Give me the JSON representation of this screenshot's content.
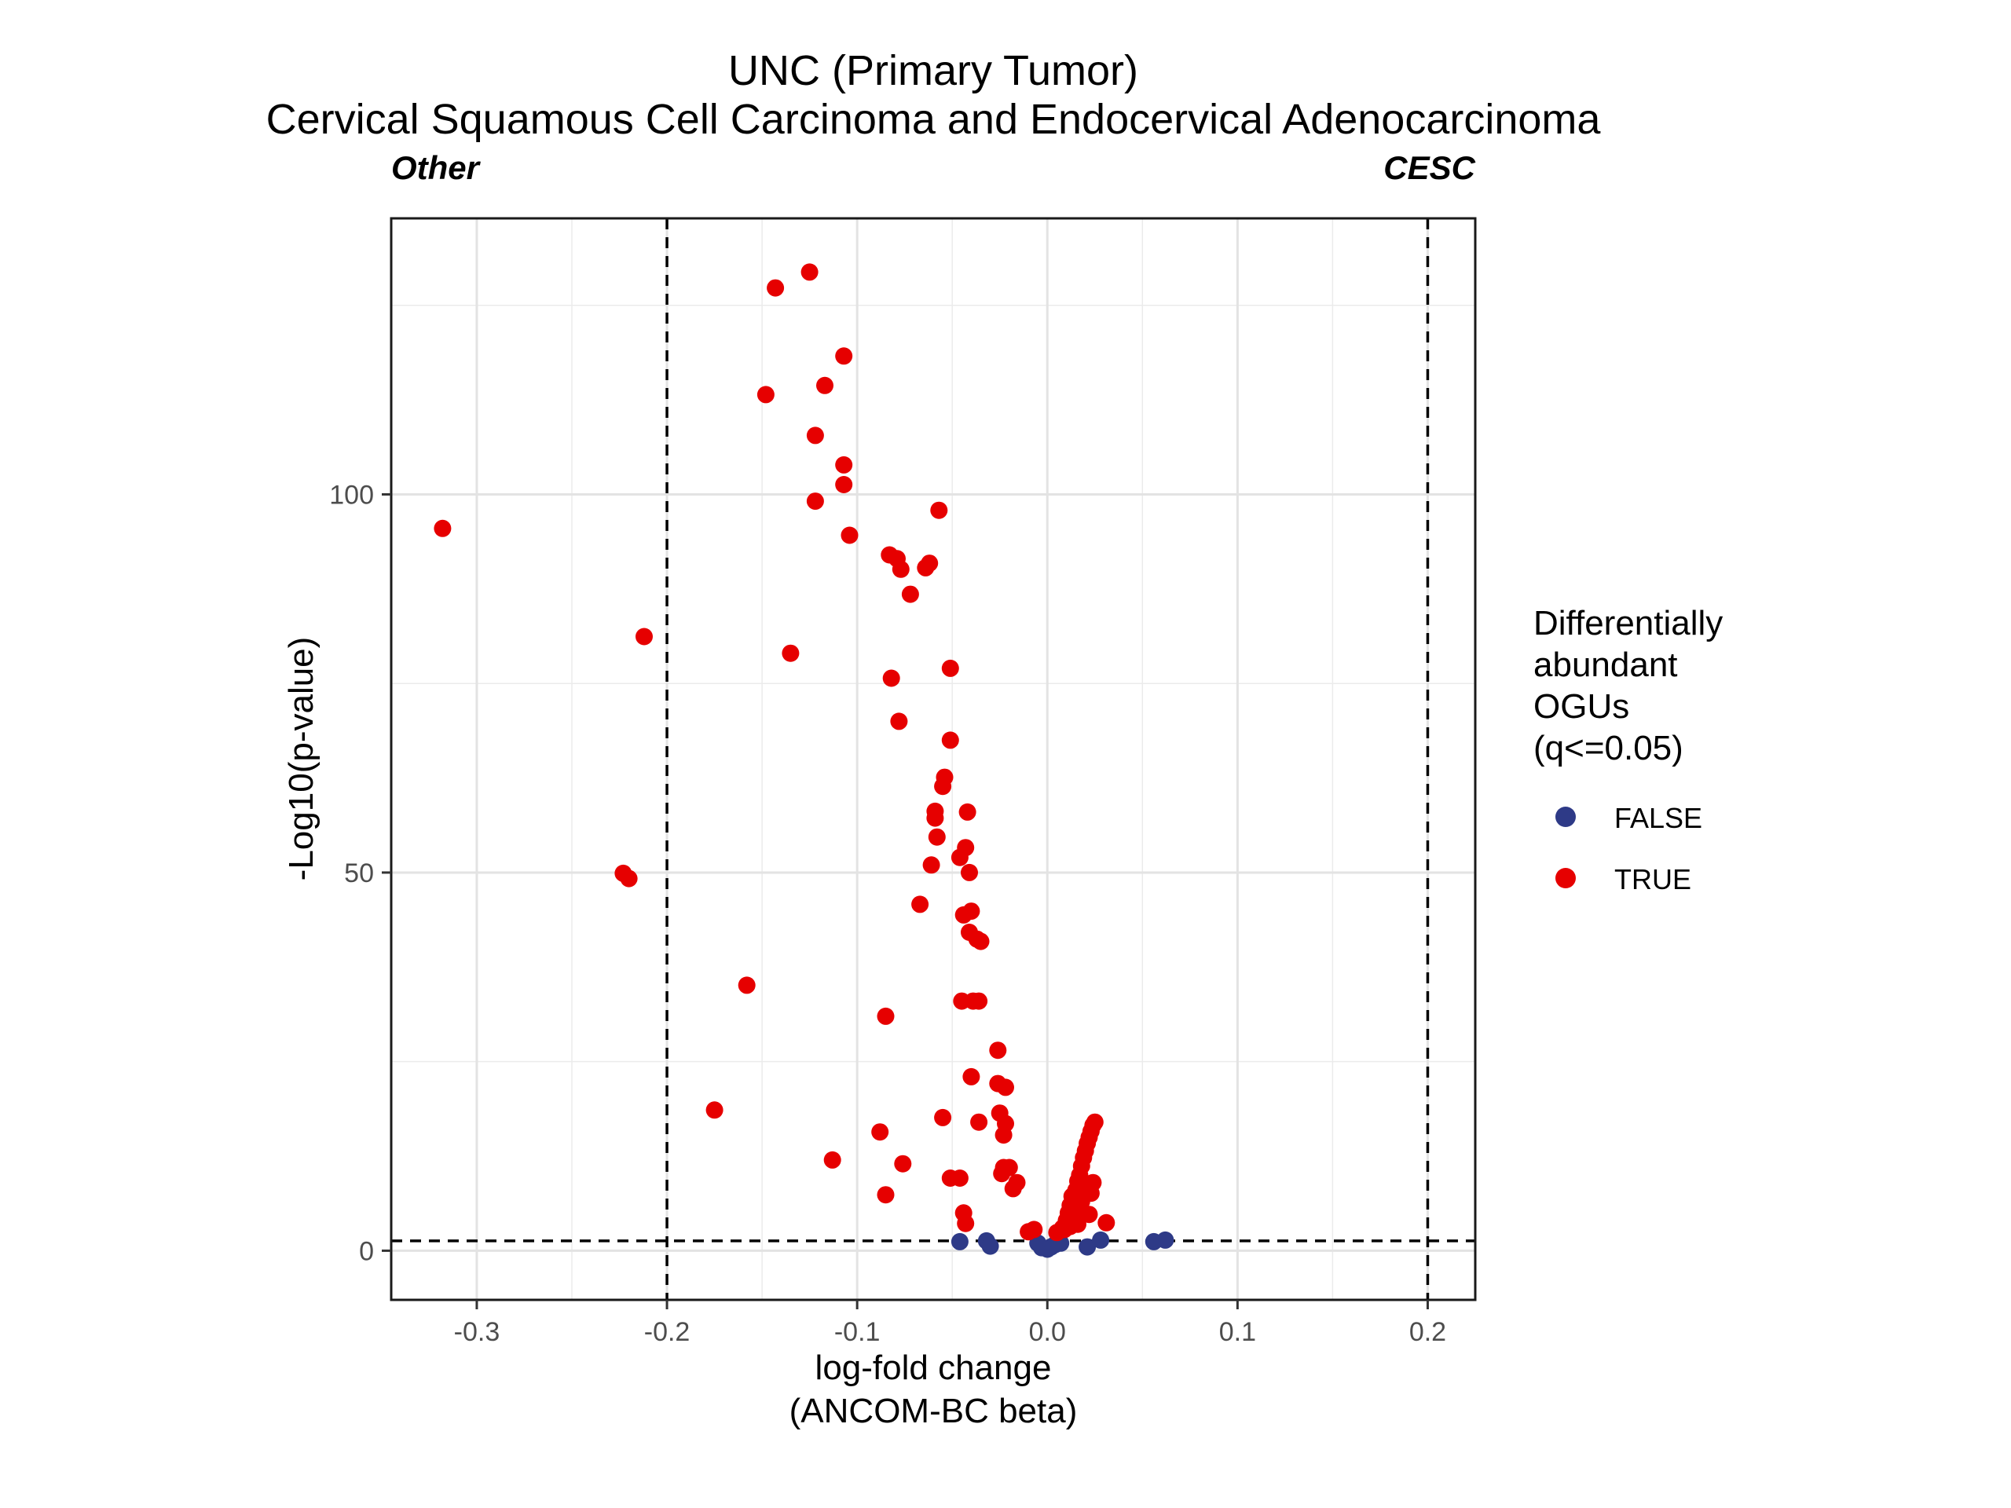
{
  "chart_data": {
    "type": "scatter",
    "title": "UNC (Primary Tumor)",
    "subtitle": "Cervical Squamous Cell Carcinoma and Endocervical Adenocarcinoma",
    "left_annotation": "Other",
    "right_annotation": "CESC",
    "xlabel_line1": "log-fold change",
    "xlabel_line2": "(ANCOM-BC beta)",
    "ylabel": "-Log10(p-value)",
    "xlim": [
      -0.345,
      0.225
    ],
    "ylim": [
      -6.5,
      136.5
    ],
    "x_ticks": [
      -0.3,
      -0.2,
      -0.1,
      0.0,
      0.1,
      0.2
    ],
    "x_tick_labels": [
      "-0.3",
      "-0.2",
      "-0.1",
      "0.0",
      "0.1",
      "0.2"
    ],
    "y_ticks": [
      0,
      50,
      100
    ],
    "y_tick_labels": [
      "0",
      "50",
      "100"
    ],
    "grid": true,
    "reference_lines": {
      "vertical": [
        -0.2,
        0.2
      ],
      "horizontal": [
        1.3
      ]
    },
    "legend": {
      "title_lines": [
        "Differentially",
        "abundant",
        "OGUs",
        "(q<=0.05)"
      ],
      "placement": "right",
      "items": [
        {
          "label": "FALSE",
          "color": "#2E3A87"
        },
        {
          "label": "TRUE",
          "color": "#E60000"
        }
      ]
    },
    "series": [
      {
        "name": "FALSE",
        "color": "#2E3A87",
        "points": [
          [
            -0.046,
            1.2
          ],
          [
            -0.032,
            1.3
          ],
          [
            -0.03,
            0.6
          ],
          [
            -0.005,
            1.0
          ],
          [
            -0.003,
            0.4
          ],
          [
            0.0,
            0.2
          ],
          [
            0.002,
            0.5
          ],
          [
            0.004,
            0.8
          ],
          [
            0.007,
            1.0
          ],
          [
            0.021,
            0.5
          ],
          [
            0.028,
            1.4
          ],
          [
            0.056,
            1.2
          ],
          [
            0.062,
            1.4
          ]
        ]
      },
      {
        "name": "TRUE",
        "color": "#E60000",
        "points": [
          [
            -0.318,
            95.5
          ],
          [
            -0.212,
            81.2
          ],
          [
            -0.223,
            49.9
          ],
          [
            -0.22,
            49.2
          ],
          [
            -0.158,
            35.1
          ],
          [
            -0.175,
            18.6
          ],
          [
            -0.143,
            127.3
          ],
          [
            -0.125,
            129.4
          ],
          [
            -0.107,
            118.3
          ],
          [
            -0.117,
            114.4
          ],
          [
            -0.148,
            113.2
          ],
          [
            -0.122,
            107.8
          ],
          [
            -0.107,
            103.9
          ],
          [
            -0.107,
            101.3
          ],
          [
            -0.122,
            99.1
          ],
          [
            -0.104,
            94.6
          ],
          [
            -0.057,
            97.9
          ],
          [
            -0.083,
            92.0
          ],
          [
            -0.079,
            91.5
          ],
          [
            -0.077,
            90.1
          ],
          [
            -0.064,
            90.3
          ],
          [
            -0.062,
            90.9
          ],
          [
            -0.072,
            86.8
          ],
          [
            -0.135,
            79.0
          ],
          [
            -0.082,
            75.7
          ],
          [
            -0.051,
            77.0
          ],
          [
            -0.078,
            70.0
          ],
          [
            -0.051,
            67.5
          ],
          [
            -0.054,
            62.6
          ],
          [
            -0.055,
            61.4
          ],
          [
            -0.059,
            58.1
          ],
          [
            -0.059,
            57.2
          ],
          [
            -0.042,
            58.0
          ],
          [
            -0.058,
            54.7
          ],
          [
            -0.043,
            53.3
          ],
          [
            -0.046,
            52.0
          ],
          [
            -0.061,
            51.0
          ],
          [
            -0.041,
            50.0
          ],
          [
            -0.067,
            45.8
          ],
          [
            -0.044,
            44.4
          ],
          [
            -0.04,
            44.9
          ],
          [
            -0.041,
            42.1
          ],
          [
            -0.037,
            41.2
          ],
          [
            -0.035,
            40.9
          ],
          [
            -0.045,
            33.0
          ],
          [
            -0.039,
            33.0
          ],
          [
            -0.036,
            33.0
          ],
          [
            -0.085,
            31.0
          ],
          [
            -0.026,
            26.5
          ],
          [
            -0.04,
            23.0
          ],
          [
            -0.026,
            22.1
          ],
          [
            -0.022,
            21.6
          ],
          [
            -0.025,
            18.2
          ],
          [
            -0.022,
            16.8
          ],
          [
            -0.055,
            17.6
          ],
          [
            -0.036,
            17.0
          ],
          [
            -0.023,
            15.3
          ],
          [
            -0.088,
            15.7
          ],
          [
            -0.113,
            12.0
          ],
          [
            -0.076,
            11.5
          ],
          [
            -0.023,
            11.0
          ],
          [
            -0.02,
            11.0
          ],
          [
            -0.024,
            10.2
          ],
          [
            -0.016,
            9.0
          ],
          [
            -0.018,
            8.2
          ],
          [
            -0.046,
            9.6
          ],
          [
            -0.051,
            9.6
          ],
          [
            -0.085,
            7.4
          ],
          [
            -0.044,
            5.0
          ],
          [
            -0.043,
            3.6
          ],
          [
            -0.007,
            2.8
          ],
          [
            -0.01,
            2.5
          ],
          [
            0.008,
            3.0
          ],
          [
            0.01,
            4.0
          ],
          [
            0.011,
            5.0
          ],
          [
            0.012,
            6.0
          ],
          [
            0.013,
            7.2
          ],
          [
            0.015,
            8.0
          ],
          [
            0.016,
            9.2
          ],
          [
            0.017,
            10.0
          ],
          [
            0.018,
            11.2
          ],
          [
            0.019,
            12.3
          ],
          [
            0.02,
            13.2
          ],
          [
            0.021,
            14.2
          ],
          [
            0.022,
            15.0
          ],
          [
            0.023,
            15.8
          ],
          [
            0.024,
            16.6
          ],
          [
            0.025,
            17.0
          ],
          [
            0.02,
            8.0
          ],
          [
            0.023,
            7.6
          ],
          [
            0.018,
            6.5
          ],
          [
            0.015,
            5.5
          ],
          [
            0.014,
            4.2
          ],
          [
            0.022,
            4.8
          ],
          [
            0.012,
            3.2
          ],
          [
            0.031,
            3.7
          ],
          [
            0.005,
            2.4
          ],
          [
            0.009,
            2.8
          ],
          [
            0.016,
            3.5
          ],
          [
            0.024,
            9.0
          ]
        ]
      }
    ]
  }
}
